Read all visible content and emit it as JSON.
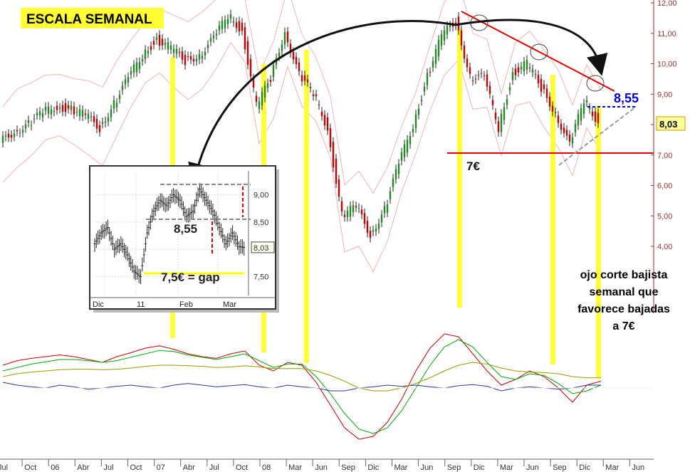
{
  "chart_data": {
    "type": "line",
    "title": "ESCALA SEMANAL",
    "title_bg": "#ffff33",
    "price_axis": {
      "ticks": [
        "12,00",
        "11,00",
        "10,00",
        "9,00",
        "8,00",
        "7,00",
        "6,00",
        "5,00",
        "4,00"
      ],
      "ylim": [
        3.6,
        12.1
      ],
      "color": "#993333"
    },
    "time_axis": {
      "labels": [
        "Jul",
        "Oct",
        "06",
        "Abr",
        "Jul",
        "Oct",
        "07",
        "Abr",
        "Jul",
        "Oct",
        "08",
        "Mar",
        "Jun",
        "Sep",
        "Dic",
        "Mar",
        "Jun",
        "Sep",
        "Dic",
        "Mar",
        "Jun",
        "Sep",
        "Dic",
        "Mar",
        "Jun"
      ]
    },
    "price_series": {
      "name": "",
      "x": [
        0,
        20,
        40,
        60,
        80,
        100,
        120,
        140,
        160,
        180,
        200,
        220,
        240,
        260,
        280,
        300,
        320,
        340,
        360,
        380,
        400,
        420,
        440,
        460,
        480,
        500,
        520,
        540,
        560,
        580,
        600,
        620,
        640,
        660,
        680,
        700,
        720,
        740,
        760,
        780,
        800,
        820,
        840
      ],
      "values": [
        7.4,
        7.8,
        8.0,
        8.4,
        8.6,
        8.5,
        8.3,
        7.9,
        8.7,
        9.5,
        10.3,
        10.8,
        10.5,
        10.1,
        10.3,
        10.8,
        11.6,
        11.1,
        8.6,
        9.5,
        11.1,
        9.6,
        9.0,
        7.9,
        5.0,
        5.3,
        4.4,
        5.2,
        6.7,
        8.0,
        9.6,
        10.9,
        11.4,
        9.6,
        9.5,
        7.9,
        9.7,
        10.0,
        9.2,
        8.4,
        7.3,
        8.8,
        8.1
      ],
      "last_value": "8,03",
      "colors": {
        "up": "#228822",
        "down": "#cc0000"
      }
    },
    "annotations": [
      {
        "text": "7€",
        "value": 7.0
      },
      {
        "text": "8,55",
        "value": 8.55,
        "color": "#0000cc"
      },
      {
        "text": "ojo corte bajista semanal que favorece bajadas a 7€"
      }
    ],
    "inset": {
      "ticks": [
        "9,00",
        "8,50",
        "8,03",
        "7,50"
      ],
      "x_labels": [
        "Dic",
        "11",
        "Feb",
        "Mar"
      ],
      "label_level": "8,55",
      "label_gap": "7,5€ = gap",
      "values": [
        8.1,
        8.3,
        8.4,
        8.0,
        8.1,
        7.9,
        7.6,
        7.5,
        8.3,
        8.7,
        8.9,
        8.8,
        9.0,
        8.9,
        8.6,
        8.7,
        9.1,
        8.9,
        8.7,
        8.4,
        8.1,
        8.3,
        8.05,
        8.03
      ]
    },
    "oscillator": {
      "series": [
        {
          "color": "#cc0000",
          "values": [
            0.4,
            0.48,
            0.52,
            0.55,
            0.58,
            0.55,
            0.5,
            0.45,
            0.55,
            0.62,
            0.7,
            0.74,
            0.68,
            0.6,
            0.55,
            0.52,
            0.6,
            0.65,
            0.4,
            0.3,
            0.45,
            0.4,
            0.1,
            -0.3,
            -0.7,
            -0.9,
            -0.85,
            -0.6,
            -0.2,
            0.3,
            0.7,
            0.95,
            0.9,
            0.6,
            0.3,
            0.05,
            0.15,
            0.3,
            0.2,
            0.0,
            -0.25,
            0.05,
            0.12
          ]
        },
        {
          "color": "#00aa00",
          "values": [
            0.3,
            0.36,
            0.42,
            0.46,
            0.5,
            0.5,
            0.48,
            0.45,
            0.48,
            0.54,
            0.6,
            0.66,
            0.64,
            0.58,
            0.54,
            0.5,
            0.55,
            0.6,
            0.48,
            0.36,
            0.42,
            0.42,
            0.2,
            -0.1,
            -0.45,
            -0.72,
            -0.8,
            -0.7,
            -0.4,
            0.0,
            0.4,
            0.72,
            0.85,
            0.72,
            0.45,
            0.2,
            0.15,
            0.25,
            0.22,
            0.08,
            -0.1,
            -0.05,
            0.05
          ]
        },
        {
          "color": "#333399",
          "values": [
            0.1,
            0.05,
            0.02,
            0.0,
            0.05,
            0.02,
            -0.02,
            0.0,
            0.03,
            0.05,
            0.02,
            0.0,
            0.05,
            0.08,
            0.05,
            0.02,
            0.04,
            0.06,
            0.02,
            0.0,
            0.05,
            0.02,
            0.0,
            -0.05,
            -0.05,
            0.0,
            0.02,
            0.05,
            0.03,
            0.05,
            0.02,
            0.0,
            0.04,
            0.06,
            0.03,
            -0.05,
            0.0,
            0.02,
            0.0,
            -0.02,
            0.0,
            0.05,
            0.05
          ]
        },
        {
          "color": "#999900",
          "values": [
            0.2,
            0.25,
            0.28,
            0.3,
            0.32,
            0.33,
            0.33,
            0.32,
            0.33,
            0.35,
            0.38,
            0.4,
            0.4,
            0.39,
            0.38,
            0.36,
            0.37,
            0.39,
            0.37,
            0.34,
            0.34,
            0.34,
            0.3,
            0.22,
            0.12,
            0.0,
            -0.05,
            -0.05,
            0.0,
            0.08,
            0.18,
            0.3,
            0.4,
            0.45,
            0.42,
            0.35,
            0.3,
            0.28,
            0.27,
            0.25,
            0.2,
            0.18,
            0.18
          ]
        }
      ]
    }
  }
}
